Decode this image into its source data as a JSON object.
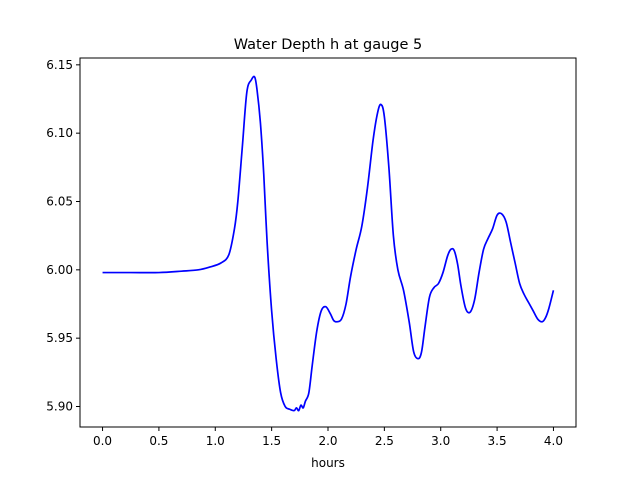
{
  "chart_data": {
    "type": "line",
    "title": "Water Depth h at gauge 5",
    "xlabel": "hours",
    "ylabel": "",
    "xlim": [
      -0.2,
      4.2
    ],
    "ylim": [
      5.885,
      6.155
    ],
    "grid": false,
    "legend": "none",
    "xticks": [
      0.0,
      0.5,
      1.0,
      1.5,
      2.0,
      2.5,
      3.0,
      3.5,
      4.0
    ],
    "xtick_labels": [
      "0.0",
      "0.5",
      "1.0",
      "1.5",
      "2.0",
      "2.5",
      "3.0",
      "3.5",
      "4.0"
    ],
    "yticks": [
      5.9,
      5.95,
      6.0,
      6.05,
      6.1,
      6.15
    ],
    "ytick_labels": [
      "5.90",
      "5.95",
      "6.00",
      "6.05",
      "6.10",
      "6.15"
    ],
    "series": [
      {
        "name": "",
        "color": "#0000ff",
        "x": [
          0.0,
          0.25,
          0.5,
          0.7,
          0.85,
          0.95,
          1.05,
          1.12,
          1.17,
          1.2,
          1.24,
          1.28,
          1.32,
          1.35,
          1.37,
          1.4,
          1.43,
          1.46,
          1.5,
          1.54,
          1.58,
          1.62,
          1.66,
          1.7,
          1.72,
          1.74,
          1.76,
          1.78,
          1.8,
          1.83,
          1.86,
          1.9,
          1.94,
          1.98,
          2.02,
          2.05,
          2.08,
          2.12,
          2.16,
          2.2,
          2.25,
          2.3,
          2.35,
          2.4,
          2.44,
          2.47,
          2.5,
          2.54,
          2.58,
          2.62,
          2.67,
          2.72,
          2.76,
          2.8,
          2.83,
          2.86,
          2.9,
          2.94,
          2.98,
          3.02,
          3.06,
          3.09,
          3.12,
          3.15,
          3.18,
          3.22,
          3.26,
          3.3,
          3.34,
          3.38,
          3.42,
          3.46,
          3.5,
          3.54,
          3.58,
          3.62,
          3.66,
          3.7,
          3.74,
          3.78,
          3.82,
          3.86,
          3.9,
          3.93,
          3.96,
          4.0
        ],
        "y": [
          5.998,
          5.998,
          5.998,
          5.999,
          6.0,
          6.002,
          6.005,
          6.011,
          6.03,
          6.05,
          6.09,
          6.13,
          6.139,
          6.141,
          6.132,
          6.108,
          6.07,
          6.02,
          5.97,
          5.935,
          5.91,
          5.9,
          5.898,
          5.897,
          5.899,
          5.897,
          5.901,
          5.899,
          5.904,
          5.91,
          5.93,
          5.955,
          5.97,
          5.973,
          5.968,
          5.963,
          5.962,
          5.964,
          5.975,
          5.995,
          6.015,
          6.032,
          6.06,
          6.095,
          6.115,
          6.121,
          6.112,
          6.075,
          6.025,
          6.0,
          5.985,
          5.962,
          5.94,
          5.935,
          5.94,
          5.958,
          5.98,
          5.987,
          5.99,
          5.998,
          6.01,
          6.015,
          6.014,
          6.004,
          5.988,
          5.972,
          5.969,
          5.978,
          5.998,
          6.015,
          6.023,
          6.03,
          6.04,
          6.041,
          6.035,
          6.02,
          6.005,
          5.99,
          5.982,
          5.976,
          5.97,
          5.964,
          5.962,
          5.965,
          5.972,
          5.985
        ]
      }
    ]
  }
}
